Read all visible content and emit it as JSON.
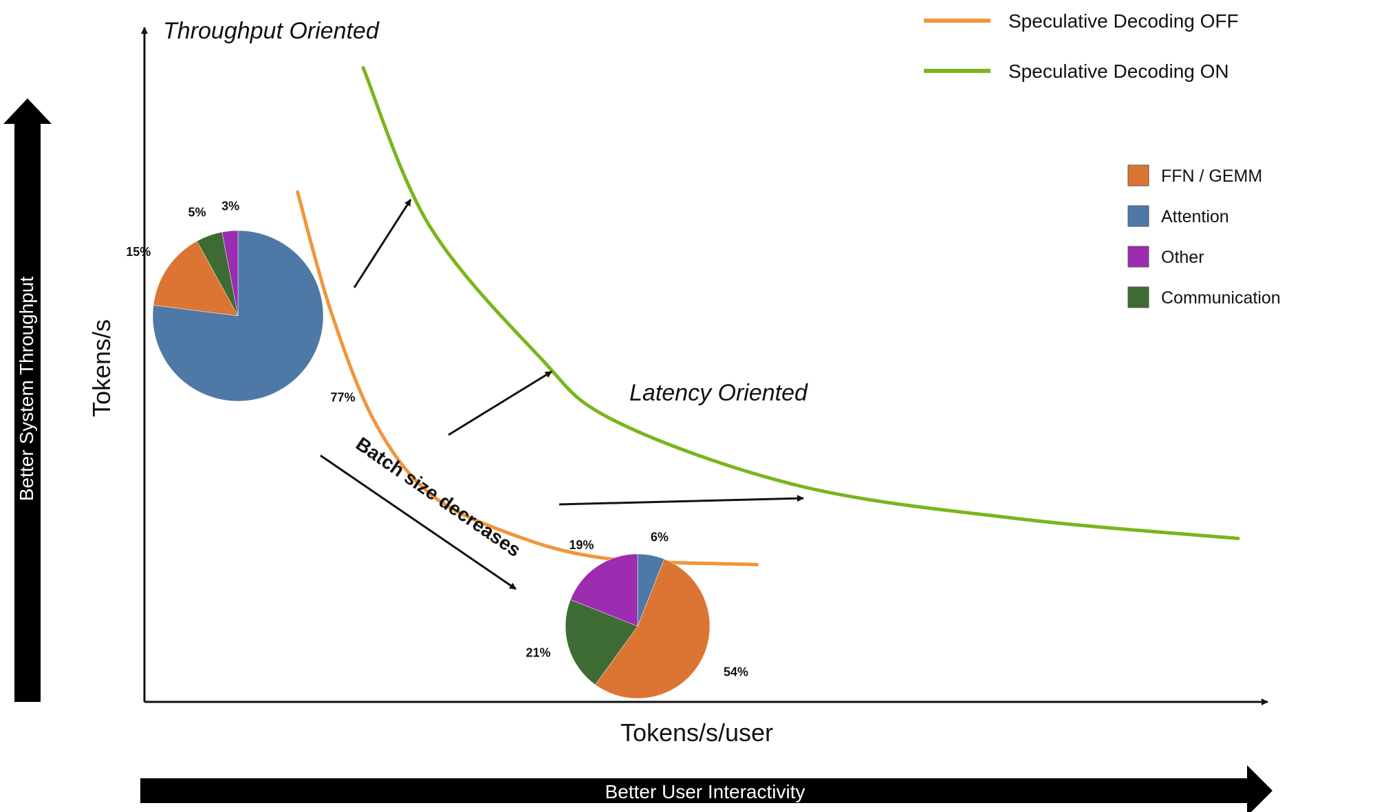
{
  "chart_data": {
    "type": "line",
    "title": "",
    "xlabel": "Tokens/s/user",
    "ylabel": "Tokens/s",
    "x_axis_banner": "Better User Interactivity",
    "y_axis_banner": "Better System Throughput",
    "corner_labels": {
      "top_left": "Throughput Oriented",
      "bottom_right": "Latency Oriented"
    },
    "grid": false,
    "legend_position": "top-right",
    "series": [
      {
        "name": "Speculative Decoding OFF",
        "color": "#f0963c",
        "points": [
          [
            0.14,
            0.78
          ],
          [
            0.17,
            0.6
          ],
          [
            0.21,
            0.43
          ],
          [
            0.26,
            0.32
          ],
          [
            0.33,
            0.26
          ],
          [
            0.42,
            0.22
          ],
          [
            0.56,
            0.21
          ]
        ]
      },
      {
        "name": "Speculative Decoding ON",
        "color": "#7ab51d",
        "points": [
          [
            0.2,
            0.97
          ],
          [
            0.26,
            0.73
          ],
          [
            0.36,
            0.53
          ],
          [
            0.43,
            0.43
          ],
          [
            0.6,
            0.33
          ],
          [
            0.8,
            0.28
          ],
          [
            1.0,
            0.25
          ]
        ]
      }
    ],
    "annotations": {
      "batch_size": "Batch size decreases"
    },
    "pie_legend": [
      {
        "name": "FFN / GEMM",
        "color": "#dc7533"
      },
      {
        "name": "Attention",
        "color": "#4e79a7"
      },
      {
        "name": "Other",
        "color": "#9c2cb0"
      },
      {
        "name": "Communication",
        "color": "#3e6b34"
      }
    ],
    "pies": [
      {
        "slices": [
          {
            "name": "Attention",
            "value": 77,
            "label": "77%"
          },
          {
            "name": "FFN / GEMM",
            "value": 15,
            "label": "15%"
          },
          {
            "name": "Communication",
            "value": 5,
            "label": "5%"
          },
          {
            "name": "Other",
            "value": 3,
            "label": "3%"
          }
        ]
      },
      {
        "slices": [
          {
            "name": "Attention",
            "value": 6,
            "label": "6%"
          },
          {
            "name": "FFN / GEMM",
            "value": 54,
            "label": "54%"
          },
          {
            "name": "Communication",
            "value": 21,
            "label": "21%"
          },
          {
            "name": "Other",
            "value": 19,
            "label": "19%"
          }
        ]
      }
    ]
  }
}
